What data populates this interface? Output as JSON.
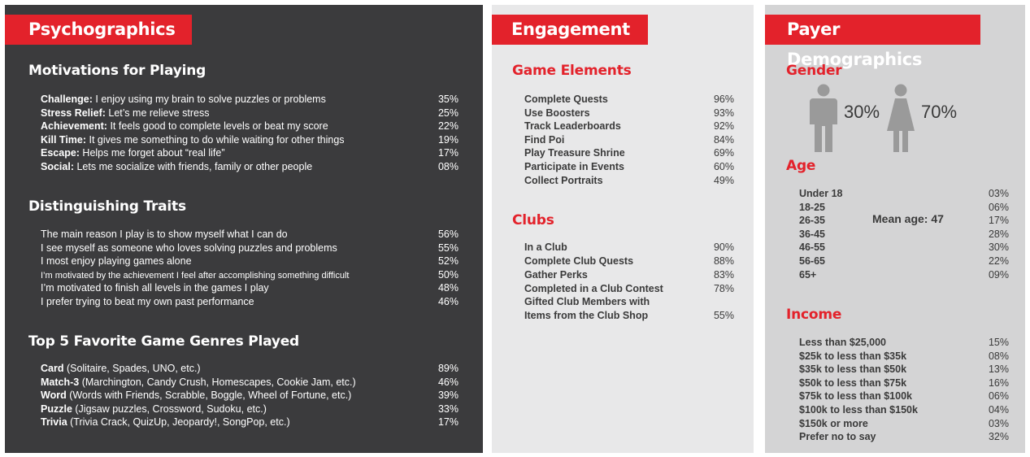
{
  "psychographics": {
    "title": "Psychographics",
    "motivations": {
      "heading": "Motivations for Playing",
      "items": [
        {
          "label": "Challenge:",
          "text": " I enjoy using my brain to solve puzzles or problems",
          "value": "35%"
        },
        {
          "label": "Stress Relief:",
          "text": " Let’s me relieve stress",
          "value": "25%"
        },
        {
          "label": "Achievement:",
          "text": " It feels good to complete levels or beat my score",
          "value": "22%"
        },
        {
          "label": "Kill Time:",
          "text": " It gives me something to do while waiting for other things",
          "value": "19%"
        },
        {
          "label": "Escape:",
          "text": " Helps me forget about “real life”",
          "value": "17%"
        },
        {
          "label": "Social:",
          "text": " Lets me socialize with friends, family or other people",
          "value": "08%"
        }
      ]
    },
    "traits": {
      "heading": "Distinguishing Traits",
      "items": [
        {
          "text": "The main reason I play is to show myself what I can do",
          "value": "56%"
        },
        {
          "text": "I see myself as someone who loves solving puzzles and problems",
          "value": "55%"
        },
        {
          "text": "I most enjoy playing games alone",
          "value": "52%"
        },
        {
          "text": "I’m motivated by the achievement I feel after accomplishing something difficult",
          "value": "50%"
        },
        {
          "text": "I’m motivated to finish all levels in the games I play",
          "value": "48%"
        },
        {
          "text": "I prefer trying to beat my own past performance",
          "value": "46%"
        }
      ]
    },
    "genres": {
      "heading": "Top 5 Favorite Game Genres Played",
      "items": [
        {
          "label": "Card",
          "text": " (Solitaire, Spades, UNO, etc.)",
          "value": "89%"
        },
        {
          "label": "Match-3",
          "text": " (Marchington, Candy Crush, Homescapes, Cookie Jam, etc.)",
          "value": "46%"
        },
        {
          "label": "Word",
          "text": " (Words with Friends, Scrabble, Boggle, Wheel of Fortune, etc.)",
          "value": "39%"
        },
        {
          "label": "Puzzle",
          "text": " (Jigsaw puzzles, Crossword, Sudoku, etc.)",
          "value": "33%"
        },
        {
          "label": "Trivia",
          "text": " (Trivia Crack, QuizUp, Jeopardy!, SongPop, etc.)",
          "value": "17%"
        }
      ]
    }
  },
  "engagement": {
    "title": "Engagement",
    "game_elements": {
      "heading": "Game Elements",
      "items": [
        {
          "text": "Complete Quests",
          "value": "96%"
        },
        {
          "text": "Use Boosters",
          "value": "93%"
        },
        {
          "text": "Track Leaderboards",
          "value": "92%"
        },
        {
          "text": "Find Poi",
          "value": "84%"
        },
        {
          "text": "Play Treasure Shrine",
          "value": "69%"
        },
        {
          "text": "Participate in Events",
          "value": "60%"
        },
        {
          "text": "Collect Portraits",
          "value": "49%"
        }
      ]
    },
    "clubs": {
      "heading": "Clubs",
      "items": [
        {
          "text": "In a Club",
          "value": "90%"
        },
        {
          "text": "Complete Club Quests",
          "value": "88%"
        },
        {
          "text": "Gather Perks",
          "value": "83%"
        },
        {
          "text": "Completed in a Club Contest",
          "value": "78%"
        },
        {
          "text": "Gifted Club Members with",
          "value": ""
        },
        {
          "text": "Items from the Club Shop",
          "value": "55%"
        }
      ]
    }
  },
  "demographics": {
    "title": "Payer Demographics",
    "gender": {
      "heading": "Gender",
      "male": "30%",
      "female": "70%",
      "icon_color": "#9a9a9a"
    },
    "age": {
      "heading": "Age",
      "mean": "Mean age: 47",
      "items": [
        {
          "text": "Under 18",
          "value": "03%"
        },
        {
          "text": "18-25",
          "value": "06%"
        },
        {
          "text": "26-35",
          "value": "17%"
        },
        {
          "text": "36-45",
          "value": "28%"
        },
        {
          "text": "46-55",
          "value": "30%"
        },
        {
          "text": "56-65",
          "value": "22%"
        },
        {
          "text": "65+",
          "value": "09%"
        }
      ]
    },
    "income": {
      "heading": "Income",
      "items": [
        {
          "text": "Less than $25,000",
          "value": "15%"
        },
        {
          "text": "$25k to less than $35k",
          "value": "08%"
        },
        {
          "text": "$35k to less than $50k",
          "value": "13%"
        },
        {
          "text": "$50k to less than $75k",
          "value": "16%"
        },
        {
          "text": "$75k to less than $100k",
          "value": "06%"
        },
        {
          "text": "$100k to less than $150k",
          "value": "04%"
        },
        {
          "text": "$150k or more",
          "value": "03%"
        },
        {
          "text": "Prefer no to say",
          "value": "32%"
        }
      ]
    }
  },
  "colors": {
    "accent": "#e3222b",
    "dark_panel": "#3b3b3d",
    "light_panel": "#e8e8e9",
    "mid_panel": "#d4d4d5"
  }
}
